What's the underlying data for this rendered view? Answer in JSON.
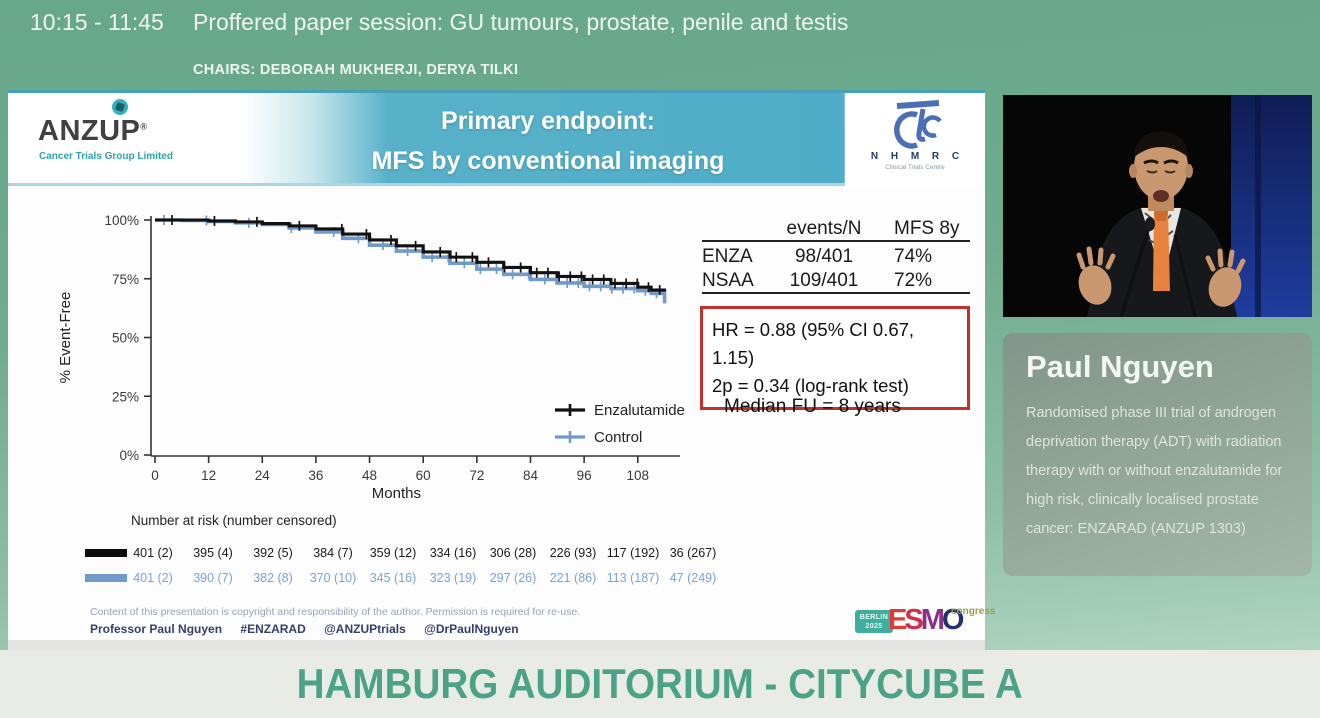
{
  "session_bar": {
    "time": "10:15 - 11:45",
    "title": "Proffered paper session: GU tumours, prostate, penile and testis",
    "chairs": "CHAIRS: DEBORAH MUKHERJI, DERYA TILKI"
  },
  "slide": {
    "anzup_logo": {
      "name": "ANZUP",
      "reg": "®",
      "tagline": "Cancer Trials Group Limited"
    },
    "title_line1": "Primary endpoint:",
    "title_line2": "MFS by conventional imaging",
    "nhmrc_logo": {
      "name": "N H M R C",
      "tagline": "Clinical Trials Centre"
    },
    "stats": {
      "col_events": "events/N",
      "col_mfs": "MFS 8y",
      "rows": [
        {
          "name": "ENZA",
          "events": "98/401",
          "mfs": "74%"
        },
        {
          "name": "NSAA",
          "events": "109/401",
          "mfs": "72%"
        }
      ]
    },
    "hr_box": {
      "line1": "HR = 0.88 (95% CI 0.67, 1.15)",
      "line2": "2p = 0.34 (log-rank test)",
      "border_color": "#c4302b"
    },
    "median_fu": "Median FU = 8 years",
    "risk_table": {
      "label": "Number at risk (number censored)",
      "enza": [
        "401 (2)",
        "395 (4)",
        "392 (5)",
        "384 (7)",
        "359 (12)",
        "334 (16)",
        "306 (28)",
        "226 (93)",
        "117 (192)",
        "36 (267)"
      ],
      "control": [
        "401 (2)",
        "390 (7)",
        "382 (8)",
        "370 (10)",
        "345 (16)",
        "323 (19)",
        "297 (26)",
        "221 (86)",
        "113 (187)",
        "47 (249)"
      ]
    },
    "footer": {
      "copyright": "Content of this presentation is copyright and responsibility of the author. Permission is required for re-use.",
      "credits": [
        "Professor Paul Nguyen",
        "#ENZARAD",
        "@ANZUPtrials",
        "@DrPaulNguyen"
      ]
    },
    "esmo_logo": {
      "venue": "BERLIN",
      "year": "2025",
      "letters": [
        "E",
        "S",
        "M",
        "O"
      ],
      "congress": "congress"
    }
  },
  "chart_data": {
    "type": "line",
    "subtype": "kaplan-meier-step",
    "title": "MFS by conventional imaging",
    "xlabel": "Months",
    "ylabel": "% Event-Free",
    "xticks": [
      0,
      12,
      24,
      36,
      48,
      60,
      72,
      84,
      96,
      108
    ],
    "ytick_labels": [
      "0%",
      "25%",
      "50%",
      "75%",
      "100%"
    ],
    "yticks_percent": [
      0,
      25,
      50,
      75,
      100
    ],
    "xlim": [
      0,
      116
    ],
    "ylim_percent": [
      0,
      103
    ],
    "grid": false,
    "legend_position": "inside-bottom-right",
    "censor_marks": true,
    "x": [
      0,
      6,
      12,
      18,
      24,
      30,
      36,
      42,
      48,
      54,
      60,
      66,
      72,
      78,
      84,
      90,
      96,
      102,
      108,
      111,
      114
    ],
    "series": [
      {
        "name": "Enzalutamide",
        "color": "#111111",
        "values": [
          100,
          100,
          99.6,
          99.2,
          98.5,
          97.5,
          96.2,
          94.0,
          91.5,
          89.0,
          86.4,
          84.2,
          82.0,
          79.8,
          77.6,
          76.0,
          74.7,
          73.0,
          71.4,
          70.2,
          69.5
        ]
      },
      {
        "name": "Control",
        "color": "#7199c9",
        "values": [
          100,
          99.8,
          99.4,
          98.8,
          98.1,
          96.6,
          94.9,
          92.2,
          89.3,
          86.8,
          84.2,
          81.6,
          79.1,
          76.9,
          74.7,
          73.2,
          71.8,
          70.8,
          69.9,
          68.8,
          64.5
        ]
      }
    ],
    "annotations": {
      "mfs_8y": {
        "Enzalutamide": "74%",
        "Control": "72%"
      },
      "hazard_ratio": "HR = 0.88 (95% CI 0.67, 1.15)",
      "p_value": "2p = 0.34 (log-rank test)",
      "median_followup": "Median FU = 8 years"
    }
  },
  "speaker": {
    "name": "Paul Nguyen",
    "abstract": "Randomised phase III trial of androgen deprivation therapy (ADT) with radiation therapy with or without enzalutamide for high risk, clinically localised prostate cancer: ENZARAD (ANZUP 1303)"
  },
  "venue_bar": {
    "text": "HAMBURG AUDITORIUM - CITYCUBE A"
  }
}
